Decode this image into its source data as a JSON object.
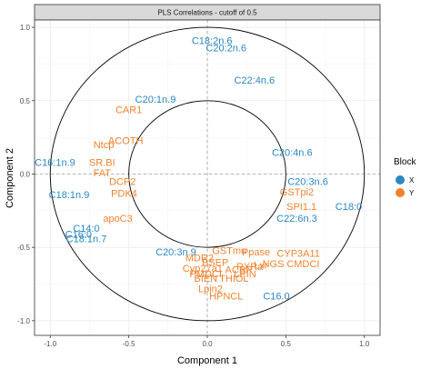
{
  "chart_data": {
    "type": "scatter",
    "title": "PLS Correlations - cutoff of 0.5",
    "xlabel": "Component  1",
    "ylabel": "Component  2",
    "xlim": [
      -1.1,
      1.1
    ],
    "ylim": [
      -1.1,
      1.05
    ],
    "xticks": [
      "-1.0",
      "-0.5",
      "0.0",
      "0.5",
      "1.0"
    ],
    "yticks": [
      "-1.0",
      "-0.5",
      "0.0",
      "0.5",
      "1.0"
    ],
    "xtick_values": [
      -1.0,
      -0.5,
      0.0,
      0.5,
      1.0
    ],
    "ytick_values": [
      -1.0,
      -0.5,
      0.0,
      0.5,
      1.0
    ],
    "grid": true,
    "circles": [
      1.0,
      0.5
    ],
    "reference_lines": {
      "x": 0,
      "y": 0
    },
    "legend": {
      "title": "Block",
      "position": "right",
      "entries": [
        {
          "name": "X",
          "color": "#2b86c4"
        },
        {
          "name": "Y",
          "color": "#f0822e"
        }
      ]
    },
    "series": [
      {
        "name": "X",
        "color": "#2b86c4",
        "points": [
          {
            "label": "C18:2n.6",
            "x": 0.03,
            "y": 0.91
          },
          {
            "label": "C20:2n.6",
            "x": 0.12,
            "y": 0.86
          },
          {
            "label": "C22:4n.6",
            "x": 0.3,
            "y": 0.64
          },
          {
            "label": "C20:1n.9",
            "x": -0.33,
            "y": 0.51
          },
          {
            "label": "C16:1n.9",
            "x": -0.97,
            "y": 0.08
          },
          {
            "label": "C18:1n.9",
            "x": -0.88,
            "y": -0.14
          },
          {
            "label": "C20:4n.6",
            "x": 0.54,
            "y": 0.15
          },
          {
            "label": "C20:3n.6",
            "x": 0.64,
            "y": -0.05
          },
          {
            "label": "C18:0",
            "x": 0.9,
            "y": -0.22
          },
          {
            "label": "C22:6n.3",
            "x": 0.57,
            "y": -0.3
          },
          {
            "label": "C14:0",
            "x": -0.77,
            "y": -0.37
          },
          {
            "label": "C16:0",
            "x": -0.82,
            "y": -0.41
          },
          {
            "label": "C18:1n.7",
            "x": -0.77,
            "y": -0.44
          },
          {
            "label": "C20:3n.9",
            "x": -0.2,
            "y": -0.53
          },
          {
            "label": "C16.0",
            "x": 0.44,
            "y": -0.83
          }
        ]
      },
      {
        "name": "Y",
        "color": "#f0822e",
        "points": [
          {
            "label": "CAR1",
            "x": -0.5,
            "y": 0.44
          },
          {
            "label": "ACOTH",
            "x": -0.52,
            "y": 0.23
          },
          {
            "label": "Ntcp",
            "x": -0.66,
            "y": 0.2
          },
          {
            "label": "SR.BI",
            "x": -0.67,
            "y": 0.08
          },
          {
            "label": "FAT",
            "x": -0.67,
            "y": 0.01
          },
          {
            "label": "DCP2",
            "x": -0.54,
            "y": -0.05
          },
          {
            "label": "PDK4",
            "x": -0.53,
            "y": -0.13
          },
          {
            "label": "apoC3",
            "x": -0.57,
            "y": -0.3
          },
          {
            "label": "GSTpi2",
            "x": 0.57,
            "y": -0.12
          },
          {
            "label": "SPI1.1",
            "x": 0.6,
            "y": -0.22
          },
          {
            "label": "CYP3A11",
            "x": 0.58,
            "y": -0.54
          },
          {
            "label": "CMDCI",
            "x": 0.61,
            "y": -0.61
          },
          {
            "label": "GSTmu",
            "x": 0.14,
            "y": -0.52
          },
          {
            "label": "BSEP",
            "x": 0.05,
            "y": -0.6
          },
          {
            "label": "MDR2",
            "x": -0.05,
            "y": -0.57
          },
          {
            "label": "Cyp27a1",
            "x": -0.03,
            "y": -0.64
          },
          {
            "label": "PMDCI",
            "x": -0.01,
            "y": -0.68
          },
          {
            "label": "BIEN",
            "x": -0.01,
            "y": -0.71
          },
          {
            "label": "THIOL",
            "x": 0.17,
            "y": -0.71
          },
          {
            "label": "Lpin2",
            "x": 0.02,
            "y": -0.78
          },
          {
            "label": "HPNCL",
            "x": 0.12,
            "y": -0.83
          },
          {
            "label": "ACBP",
            "x": 0.2,
            "y": -0.65
          },
          {
            "label": "RXRa",
            "x": 0.27,
            "y": -0.63
          },
          {
            "label": "LPIN",
            "x": 0.24,
            "y": -0.68
          },
          {
            "label": "Lxr",
            "x": 0.34,
            "y": -0.62
          },
          {
            "label": "NGS",
            "x": 0.42,
            "y": -0.61
          },
          {
            "label": "Ppase",
            "x": 0.31,
            "y": -0.53
          }
        ]
      }
    ]
  }
}
